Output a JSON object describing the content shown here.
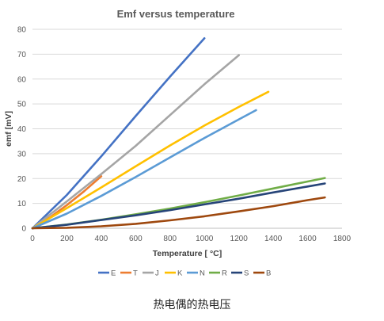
{
  "caption": "热电偶的热电压",
  "chart_data": {
    "type": "line",
    "title": "Emf versus temperature",
    "xlabel": "Temperature [ °C]",
    "ylabel": "emf [mV]",
    "xlim": [
      0,
      1800
    ],
    "ylim": [
      0,
      80
    ],
    "xticks": [
      0,
      200,
      400,
      600,
      800,
      1000,
      1200,
      1400,
      1600,
      1800
    ],
    "yticks": [
      0,
      10,
      20,
      30,
      40,
      50,
      60,
      70,
      80
    ],
    "grid": "horizontal",
    "legend_position": "bottom",
    "series": [
      {
        "name": "E",
        "color": "#4472c4",
        "x": [
          0,
          200,
          400,
          600,
          800,
          1000
        ],
        "y": [
          0,
          13.4,
          28.9,
          45.1,
          61.0,
          76.4
        ]
      },
      {
        "name": "T",
        "color": "#ed7d31",
        "x": [
          0,
          100,
          200,
          300,
          400
        ],
        "y": [
          0,
          4.3,
          9.3,
          14.9,
          20.9
        ]
      },
      {
        "name": "J",
        "color": "#a5a5a5",
        "x": [
          0,
          200,
          400,
          600,
          800,
          1000,
          1200
        ],
        "y": [
          0,
          10.8,
          21.8,
          33.1,
          45.5,
          57.9,
          69.6
        ]
      },
      {
        "name": "K",
        "color": "#ffc000",
        "x": [
          0,
          200,
          400,
          600,
          800,
          1000,
          1200,
          1372
        ],
        "y": [
          0,
          8.1,
          16.4,
          24.9,
          33.3,
          41.3,
          48.8,
          54.9
        ]
      },
      {
        "name": "N",
        "color": "#5b9bd5",
        "x": [
          0,
          200,
          400,
          600,
          800,
          1000,
          1200,
          1300
        ],
        "y": [
          0,
          5.9,
          13.0,
          20.6,
          28.5,
          36.3,
          43.8,
          47.5
        ]
      },
      {
        "name": "R",
        "color": "#70ad47",
        "x": [
          0,
          200,
          400,
          600,
          800,
          1000,
          1200,
          1400,
          1600,
          1700
        ],
        "y": [
          0,
          1.5,
          3.4,
          5.6,
          7.9,
          10.5,
          13.2,
          16.0,
          18.8,
          20.2
        ]
      },
      {
        "name": "S",
        "color": "#264478",
        "x": [
          0,
          200,
          400,
          600,
          800,
          1000,
          1200,
          1400,
          1600,
          1700
        ],
        "y": [
          0,
          1.4,
          3.3,
          5.2,
          7.3,
          9.6,
          11.9,
          14.4,
          16.8,
          18.0
        ]
      },
      {
        "name": "B",
        "color": "#9e480e",
        "x": [
          0,
          200,
          400,
          600,
          800,
          1000,
          1200,
          1400,
          1600,
          1700
        ],
        "y": [
          0,
          0.2,
          0.8,
          1.8,
          3.2,
          4.8,
          6.8,
          8.9,
          11.3,
          12.4
        ]
      }
    ]
  }
}
